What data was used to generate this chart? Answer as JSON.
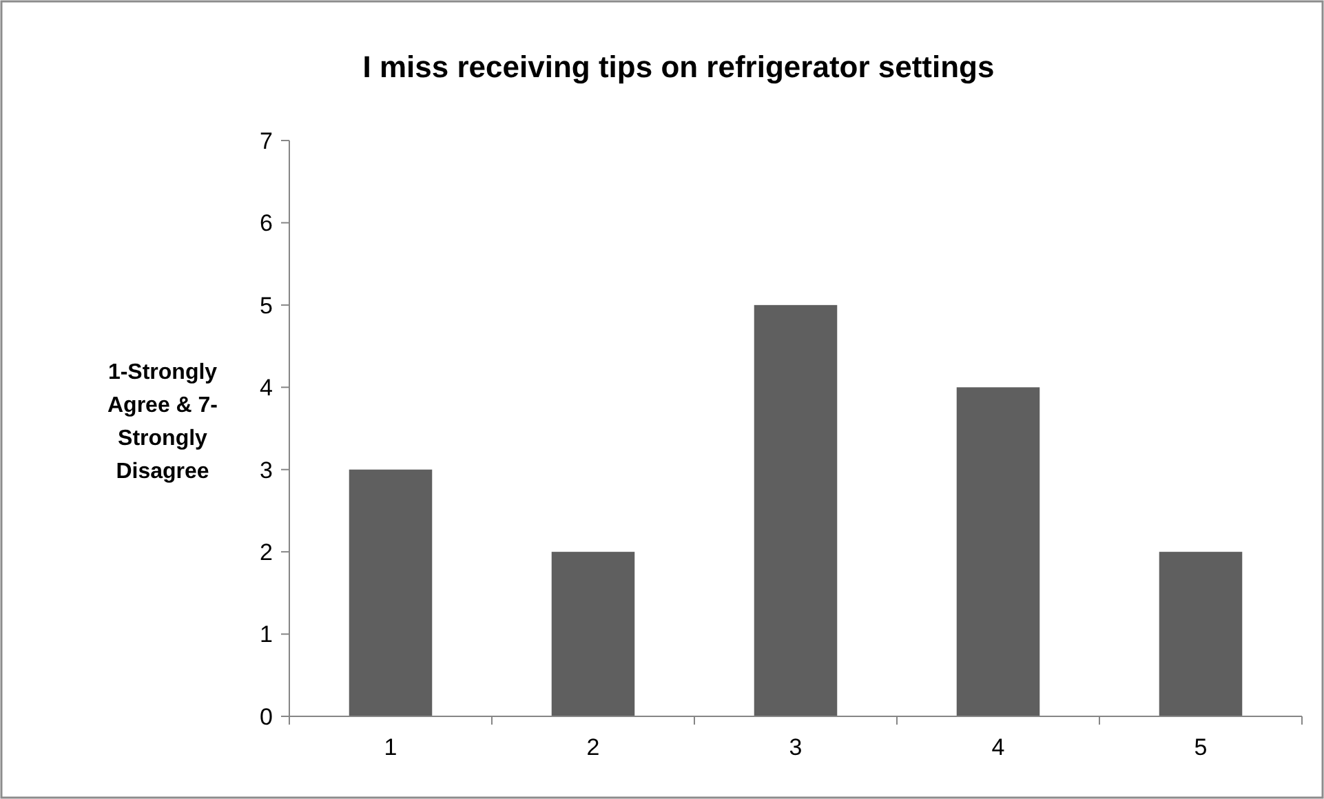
{
  "chart_data": {
    "type": "bar",
    "title": "I miss receiving tips on refrigerator settings",
    "ylabel": "1-Strongly Agree & 7-Strongly Disagree",
    "categories": [
      "1",
      "2",
      "3",
      "4",
      "5"
    ],
    "values": [
      3,
      2,
      5,
      4,
      2
    ],
    "color": "#5f5f5f",
    "ylim": [
      0,
      7
    ],
    "yticks": [
      0,
      1,
      2,
      3,
      4,
      5,
      6,
      7
    ],
    "grid": false
  }
}
